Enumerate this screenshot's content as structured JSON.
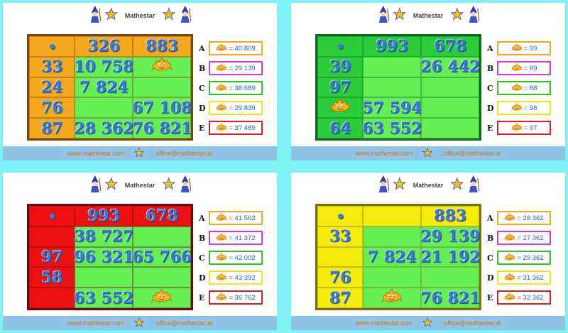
{
  "brand": "Mathestar",
  "footer": {
    "website": "www.mathestar.com",
    "email": "office@mathestar.at"
  },
  "colors": {
    "background": "#7ff2f6",
    "cell_green": "#66ef54",
    "number": "#3a7bd5"
  },
  "icons": {
    "header_left": "wizard-icon",
    "header_star": "star-icon",
    "header_right": "wizard-icon",
    "placeholder": "star-creature-icon"
  },
  "puzzles": [
    {
      "frame_color": "#f4a81c",
      "border_color": "#7a4a0a",
      "grid": [
        [
          "•",
          "326",
          "883"
        ],
        [
          "33",
          "10 758",
          "★"
        ],
        [
          "24",
          "7 824",
          ""
        ],
        [
          "76",
          "",
          "67 108"
        ],
        [
          "87",
          "28 362",
          "76 821"
        ]
      ],
      "options": [
        {
          "letter": "A",
          "value": "= 40 809",
          "color": "#f5a623"
        },
        {
          "letter": "B",
          "value": "= 29 139",
          "color": "#d63bd0"
        },
        {
          "letter": "C",
          "value": "= 38 689",
          "color": "#2fc42c"
        },
        {
          "letter": "D",
          "value": "= 29 839",
          "color": "#f1e21a"
        },
        {
          "letter": "E",
          "value": "= 37 489",
          "color": "#e02020"
        }
      ]
    },
    {
      "frame_color": "#2bcc3a",
      "border_color": "#0e6b1b",
      "grid": [
        [
          "•",
          "993",
          "678"
        ],
        [
          "39",
          "",
          "26 442"
        ],
        [
          "97",
          "",
          ""
        ],
        [
          "★",
          "57 594",
          ""
        ],
        [
          "64",
          "63 552",
          ""
        ]
      ],
      "options": [
        {
          "letter": "A",
          "value": "= 99",
          "color": "#f5a623"
        },
        {
          "letter": "B",
          "value": "= 89",
          "color": "#d63bd0"
        },
        {
          "letter": "C",
          "value": "= 88",
          "color": "#2fc42c"
        },
        {
          "letter": "D",
          "value": "= 98",
          "color": "#f1e21a"
        },
        {
          "letter": "E",
          "value": "= 97",
          "color": "#e02020"
        }
      ]
    },
    {
      "frame_color": "#ee1111",
      "border_color": "#6b0c0c",
      "grid": [
        [
          "•",
          "993",
          "678"
        ],
        [
          "",
          "38 727",
          ""
        ],
        [
          "97",
          "96 321",
          "65 766"
        ],
        [
          "58",
          "",
          ""
        ],
        [
          "",
          "63 552",
          "★"
        ]
      ],
      "options": [
        {
          "letter": "A",
          "value": "= 41 562",
          "color": "#f5a623"
        },
        {
          "letter": "B",
          "value": "= 41 372",
          "color": "#d63bd0"
        },
        {
          "letter": "C",
          "value": "= 42 002",
          "color": "#2fc42c"
        },
        {
          "letter": "D",
          "value": "= 43 392",
          "color": "#f1e21a"
        },
        {
          "letter": "E",
          "value": "= 36 762",
          "color": "#e02020"
        }
      ]
    },
    {
      "frame_color": "#f6ec0c",
      "border_color": "#7a7211",
      "grid": [
        [
          "•",
          "",
          "883"
        ],
        [
          "33",
          "",
          "29 139"
        ],
        [
          "",
          "7 824",
          "21 192"
        ],
        [
          "76",
          "",
          ""
        ],
        [
          "87",
          "★",
          "76 821"
        ]
      ],
      "options": [
        {
          "letter": "A",
          "value": "= 28 362",
          "color": "#f5a623"
        },
        {
          "letter": "B",
          "value": "= 27 362",
          "color": "#d63bd0"
        },
        {
          "letter": "C",
          "value": "= 29 362",
          "color": "#2fc42c"
        },
        {
          "letter": "D",
          "value": "= 31 362",
          "color": "#f1e21a"
        },
        {
          "letter": "E",
          "value": "= 32 362",
          "color": "#e02020"
        }
      ]
    }
  ]
}
